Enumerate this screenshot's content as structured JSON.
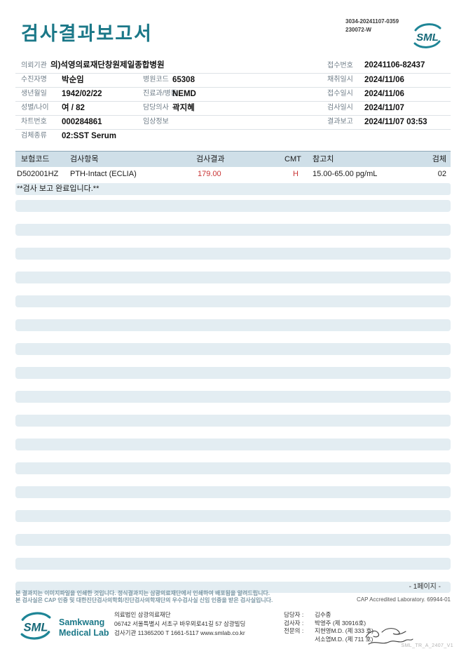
{
  "header": {
    "title": "검사결과보고서",
    "doc_number_line1": "3034-20241107-0359",
    "doc_number_line2": "230072-W",
    "logo_mark": "SML"
  },
  "info": {
    "requester_label": "의뢰기관",
    "requester_value": "의)석영의료재단창원제일종합병원",
    "receipt_label": "접수번호",
    "receipt_value": "20241106-82437",
    "rows": [
      [
        {
          "label": "수진자명",
          "value": "박순임"
        },
        {
          "label": "병원코드",
          "value": "65308"
        },
        {
          "label": "채취일시",
          "value": "2024/11/06"
        }
      ],
      [
        {
          "label": "생년월일",
          "value": "1942/02/22"
        },
        {
          "label": "진료과/병동",
          "value": "NEMD"
        },
        {
          "label": "접수일시",
          "value": "2024/11/06"
        }
      ],
      [
        {
          "label": "성별/나이",
          "value": "여 / 82"
        },
        {
          "label": "담당의사",
          "value": "곽지혜"
        },
        {
          "label": "검사일시",
          "value": "2024/11/07"
        }
      ],
      [
        {
          "label": "차트번호",
          "value": "000284861"
        },
        {
          "label": "임상정보",
          "value": ""
        },
        {
          "label": "결과보고",
          "value": "2024/11/07 03:53"
        }
      ]
    ],
    "specimen_label": "검체종류",
    "specimen_value": "02:SST Serum"
  },
  "table": {
    "headers": {
      "code": "보험코드",
      "test": "검사항목",
      "result": "검사결과",
      "cmt": "CMT",
      "reference": "참고치",
      "specimen": "검체"
    },
    "row": {
      "code": "D502001HZ",
      "test": "PTH-Intact (ECLIA)",
      "result": "179.00",
      "cmt": "H",
      "reference": "15.00-65.00 pg/mL",
      "specimen": "02"
    },
    "completion_message": "**검사 보고 완료입니다.**",
    "empty_stripe_count": 16
  },
  "pagination": {
    "label": "- 1페이지 -"
  },
  "footer": {
    "disclaimer_line1": "본 결과지는 이미지파일을 인쇄한 것입니다. 정식결과지는 삼광의료재단에서 인쇄하여 배포됨을 알려드립니다.",
    "disclaimer_line2": "본 검사실은 CAP 인증 및 대한진단검사의학회/진단검사의학재단의 우수검사실 신임 인증을 받은 검사실입니다.",
    "cap_text": "CAP Accredited Laboratory. 69944-01",
    "logo_mark": "SML",
    "logo_name_line1": "Samkwang",
    "logo_name_line2": "Medical Lab",
    "org_line1": "의료법인 삼광의료재단",
    "org_line2": "06742 서울특별시 서초구 바우뫼로41길 57 삼광빌딩",
    "org_line3": "검사기관 11365200 T 1661-5117 www.smlab.co.kr",
    "staff_manager_label": "담당자 :",
    "staff_manager_value": "김수종",
    "staff_examiner_label": "검사자 :",
    "staff_examiner_value": "박영주 (제 30916호)",
    "staff_specialist_label": "전문의 :",
    "staff_specialist_value": "지현영M.D. (제 333 호)",
    "staff_specialist2_value": "서소염M.D. (제 711 호)",
    "form_code": "SML_TR_A_2407_V1"
  },
  "colors": {
    "brand_teal": "#1b7888",
    "abnormal_red": "#c93434",
    "table_header_band": "#cfdfe8",
    "row_stripe": "#e3edf2"
  }
}
